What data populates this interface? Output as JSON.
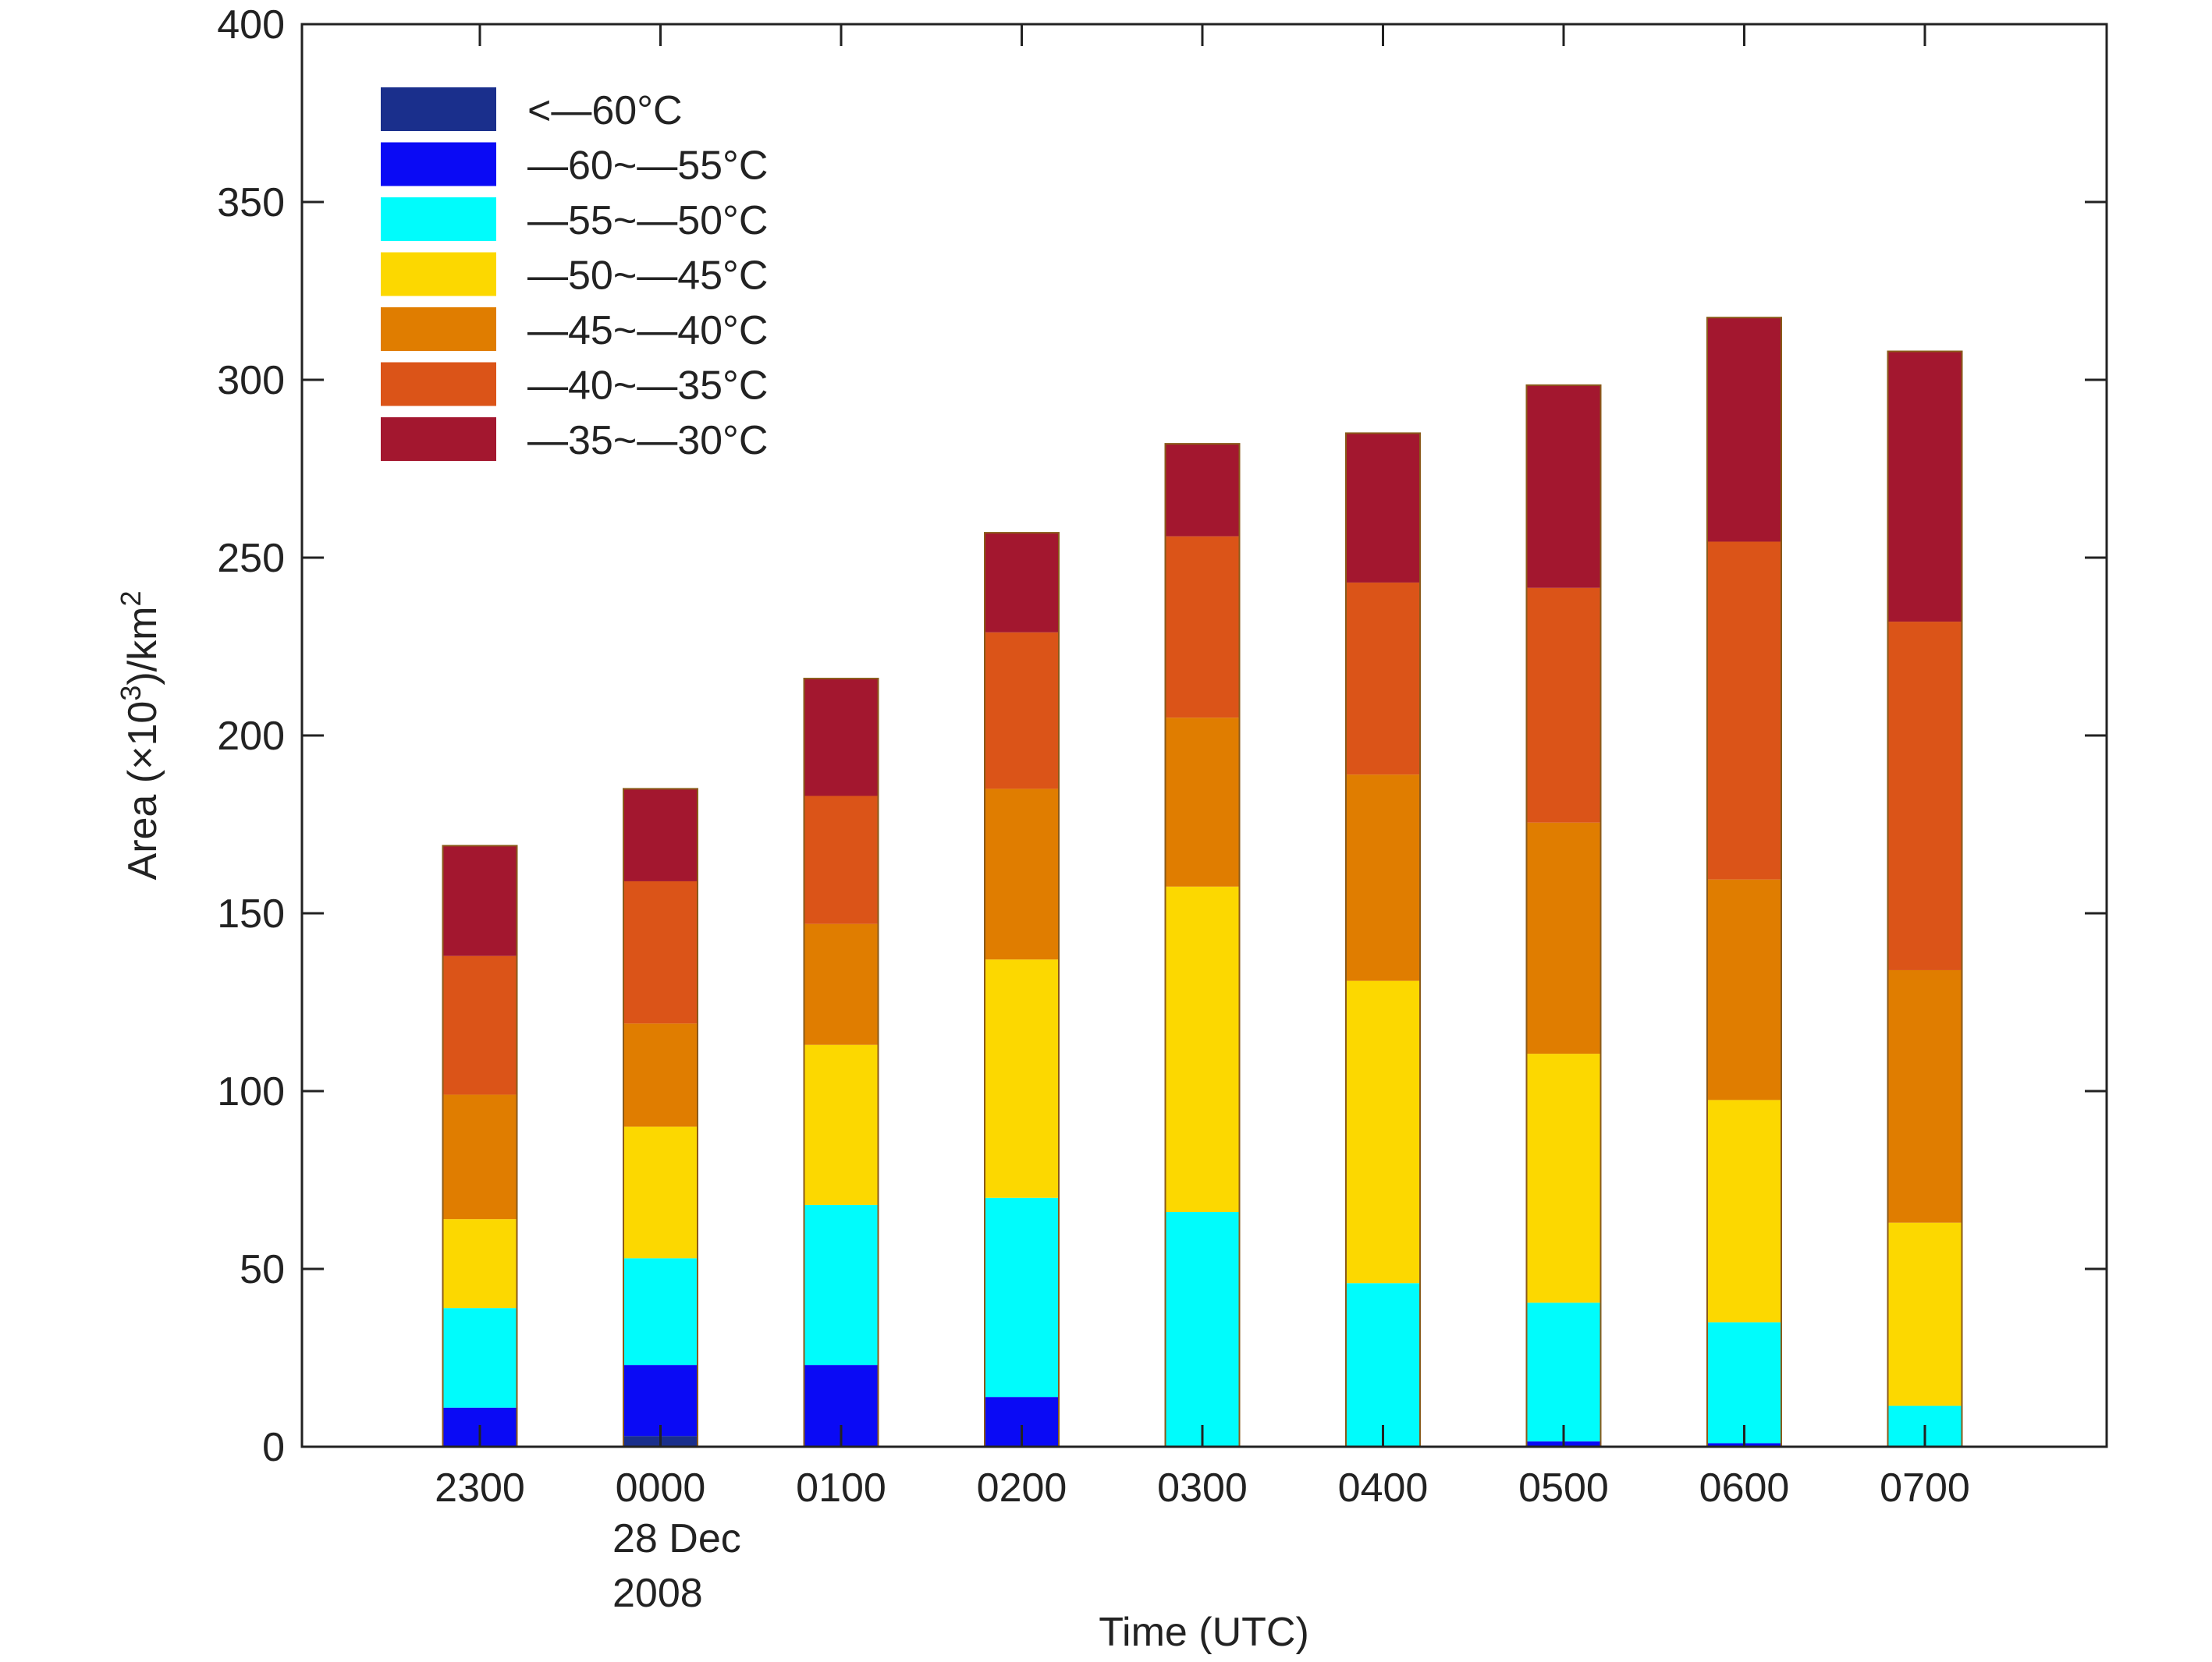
{
  "chart_data": {
    "type": "bar",
    "stacked": true,
    "title": "",
    "xlabel": "Time (UTC)",
    "ylabel": "Area (×10",
    "ylabel_sup": "3",
    "ylabel_tail": ")/km",
    "ylabel_tail_sup": "2",
    "categories": [
      "2300",
      "0000",
      "0100",
      "0200",
      "0300",
      "0400",
      "0500",
      "0600",
      "0700"
    ],
    "date_annotation": [
      "28 Dec",
      "2008"
    ],
    "ylim": [
      0,
      400
    ],
    "yticks": [
      "0",
      "50",
      "100",
      "150",
      "200",
      "250",
      "300",
      "350",
      "400"
    ],
    "grid": false,
    "legend_position": "top-left",
    "series": [
      {
        "name": "<— 60°C",
        "label": "<—60°C",
        "color": "#1a2f8c",
        "values": [
          0,
          3,
          0,
          0,
          0,
          0,
          0,
          0,
          0
        ]
      },
      {
        "name": "—60~—55°C",
        "label": "—60~—55°C",
        "color": "#0a0af5",
        "values": [
          11,
          20,
          23,
          14,
          0,
          0,
          1.5,
          1,
          0
        ]
      },
      {
        "name": "—55~—50°C",
        "label": "—55~—50°C",
        "color": "#00fcfc",
        "values": [
          28,
          30,
          45,
          56,
          66,
          46,
          39,
          34,
          11.5
        ]
      },
      {
        "name": "—50~—45°C",
        "label": "—50~—45°C",
        "color": "#fcd800",
        "values": [
          25,
          37,
          45,
          67,
          91.5,
          85,
          70,
          62.5,
          51.5
        ]
      },
      {
        "name": "—45~—40°C",
        "label": "—45~—40°C",
        "color": "#e07d00",
        "values": [
          35,
          29,
          34,
          48,
          47.5,
          58,
          65,
          62,
          71
        ]
      },
      {
        "name": "—40~—35°C",
        "label": "—40~—35°C",
        "color": "#db5418",
        "values": [
          39,
          40,
          36,
          44,
          51,
          54,
          66,
          95,
          98
        ]
      },
      {
        "name": "—35~—30°C",
        "label": "—35~—30°C",
        "color": "#a3172f",
        "values": [
          31,
          26,
          33,
          28,
          26,
          42,
          57,
          63,
          76
        ]
      }
    ]
  }
}
